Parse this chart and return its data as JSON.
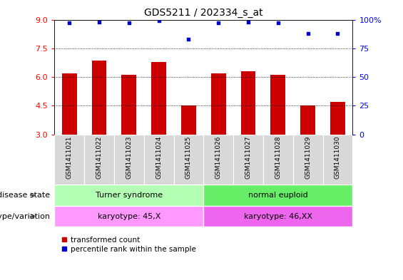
{
  "title": "GDS5211 / 202334_s_at",
  "samples": [
    "GSM1411021",
    "GSM1411022",
    "GSM1411023",
    "GSM1411024",
    "GSM1411025",
    "GSM1411026",
    "GSM1411027",
    "GSM1411028",
    "GSM1411029",
    "GSM1411030"
  ],
  "bar_values": [
    6.2,
    6.85,
    6.1,
    6.8,
    4.5,
    6.2,
    6.3,
    6.1,
    4.5,
    4.7
  ],
  "dot_values": [
    97,
    98,
    97,
    99,
    83,
    97,
    98,
    97,
    88,
    88
  ],
  "bar_color": "#cc0000",
  "dot_color": "#0000cc",
  "ylim_left": [
    3,
    9
  ],
  "ylim_right": [
    0,
    100
  ],
  "yticks_left": [
    3,
    4.5,
    6,
    7.5,
    9
  ],
  "yticks_right": [
    0,
    25,
    50,
    75,
    100
  ],
  "ytick_labels_right": [
    "0",
    "25",
    "50",
    "75",
    "100%"
  ],
  "gridlines": [
    7.5,
    6.0,
    4.5
  ],
  "disease_state_labels": [
    "Turner syndrome",
    "normal euploid"
  ],
  "disease_state_color1": "#b3ffb3",
  "disease_state_color2": "#66ee66",
  "genotype_labels": [
    "karyotype: 45,X",
    "karyotype: 46,XX"
  ],
  "genotype_color1": "#ff99ff",
  "genotype_color2": "#ee66ee",
  "group1_count": 5,
  "group2_count": 5,
  "legend_bar_label": "transformed count",
  "legend_dot_label": "percentile rank within the sample",
  "row_label1": "disease state",
  "row_label2": "genotype/variation",
  "cell_bg": "#d8d8d8"
}
